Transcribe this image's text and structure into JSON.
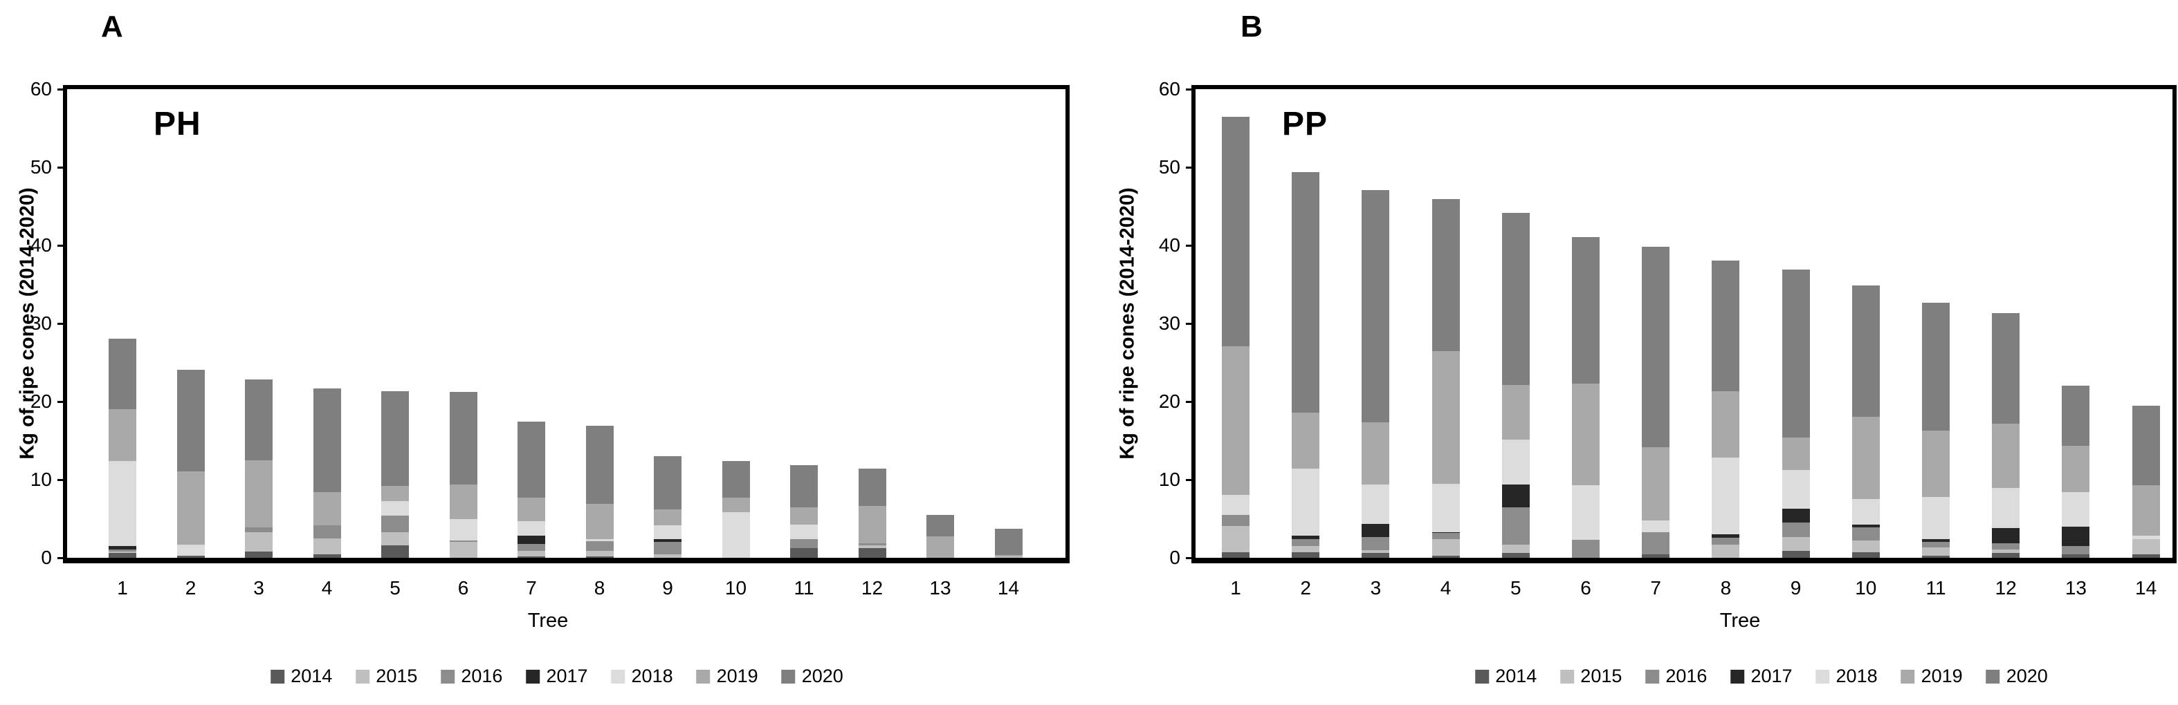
{
  "figure": {
    "panel_a_letter": "A",
    "panel_b_letter": "B"
  },
  "chart_data": [
    {
      "type": "bar",
      "stacked": true,
      "panel_label": "A",
      "title": "PH",
      "xlabel": "Tree",
      "ylabel": "Kg of ripe cones (2014-2020)",
      "ylim": [
        0,
        60
      ],
      "yticks": [
        0,
        10,
        20,
        30,
        40,
        50,
        60
      ],
      "grid": false,
      "legend_position": "bottom",
      "categories": [
        "1",
        "2",
        "3",
        "4",
        "5",
        "6",
        "7",
        "8",
        "9",
        "10",
        "11",
        "12",
        "13",
        "14"
      ],
      "series": [
        {
          "name": "2014",
          "color": "#595959",
          "values": [
            0.6,
            0.3,
            0.8,
            0.45,
            1.6,
            0,
            0.15,
            0.15,
            0,
            0,
            1.25,
            1.25,
            0,
            0
          ]
        },
        {
          "name": "2015",
          "color": "#bfbfbf",
          "values": [
            0.2,
            0,
            2.5,
            2.0,
            1.7,
            2.0,
            0.75,
            0.7,
            0.4,
            0,
            0,
            0.3,
            0,
            0.2
          ]
        },
        {
          "name": "2016",
          "color": "#8c8c8c",
          "values": [
            0.3,
            0,
            0.6,
            1.7,
            2.1,
            0.2,
            0.9,
            1.3,
            1.6,
            0,
            1.1,
            0.35,
            0,
            0
          ]
        },
        {
          "name": "2017",
          "color": "#262626",
          "values": [
            0.4,
            0,
            0,
            0,
            0,
            0,
            1.0,
            0,
            0.4,
            0,
            0,
            0,
            0,
            0
          ]
        },
        {
          "name": "2018",
          "color": "#dcdcdc",
          "values": [
            10.9,
            1.4,
            0,
            0,
            1.9,
            2.75,
            1.9,
            0.25,
            1.8,
            5.8,
            1.9,
            0,
            0,
            0
          ]
        },
        {
          "name": "2019",
          "color": "#a9a9a9",
          "values": [
            6.6,
            9.4,
            8.6,
            4.3,
            1.9,
            4.4,
            3.0,
            4.5,
            2.0,
            1.9,
            2.2,
            4.7,
            2.7,
            0.15
          ]
        },
        {
          "name": "2020",
          "color": "#7f7f7f",
          "values": [
            9.1,
            13.0,
            10.3,
            13.2,
            12.1,
            11.9,
            9.7,
            10.0,
            6.8,
            4.7,
            5.45,
            4.8,
            2.8,
            3.4
          ]
        }
      ]
    },
    {
      "type": "bar",
      "stacked": true,
      "panel_label": "B",
      "title": "PP",
      "xlabel": "Tree",
      "ylabel": "Kg of ripe cones (2014-2020)",
      "ylim": [
        0,
        60
      ],
      "yticks": [
        0,
        10,
        20,
        30,
        40,
        50,
        60
      ],
      "grid": false,
      "legend_position": "bottom",
      "categories": [
        "1",
        "2",
        "3",
        "4",
        "5",
        "6",
        "7",
        "8",
        "9",
        "10",
        "11",
        "12",
        "13",
        "14"
      ],
      "series": [
        {
          "name": "2014",
          "color": "#595959",
          "values": [
            0.75,
            0.75,
            0.6,
            0.25,
            0.6,
            0,
            0.45,
            0,
            0.9,
            0.75,
            0.3,
            0.6,
            0.45,
            0.45
          ]
        },
        {
          "name": "2015",
          "color": "#bfbfbf",
          "values": [
            3.3,
            0.75,
            0.4,
            2.1,
            1.05,
            0,
            0,
            1.65,
            1.8,
            1.5,
            1.05,
            0.45,
            0,
            1.95
          ]
        },
        {
          "name": "2016",
          "color": "#8c8c8c",
          "values": [
            1.4,
            0.85,
            1.7,
            0.8,
            4.8,
            2.3,
            2.8,
            0.9,
            1.8,
            1.65,
            0.7,
            0.8,
            1.05,
            0
          ]
        },
        {
          "name": "2017",
          "color": "#262626",
          "values": [
            0,
            0.5,
            1.65,
            0.15,
            2.9,
            0,
            0,
            0.45,
            1.8,
            0.35,
            0.35,
            2.0,
            2.5,
            0
          ]
        },
        {
          "name": "2018",
          "color": "#dcdcdc",
          "values": [
            2.6,
            8.6,
            5.0,
            6.2,
            5.8,
            7.0,
            1.5,
            9.85,
            4.9,
            3.3,
            5.4,
            5.1,
            4.4,
            0.45
          ]
        },
        {
          "name": "2019",
          "color": "#a9a9a9",
          "values": [
            19.0,
            7.1,
            8.0,
            17.0,
            7.0,
            13.0,
            9.4,
            8.5,
            4.2,
            10.5,
            8.5,
            8.2,
            5.9,
            6.4
          ]
        },
        {
          "name": "2020",
          "color": "#7f7f7f",
          "values": [
            29.4,
            30.8,
            29.7,
            19.4,
            22.0,
            18.8,
            25.7,
            16.7,
            21.5,
            16.8,
            16.4,
            14.2,
            7.75,
            10.2
          ]
        }
      ]
    }
  ]
}
